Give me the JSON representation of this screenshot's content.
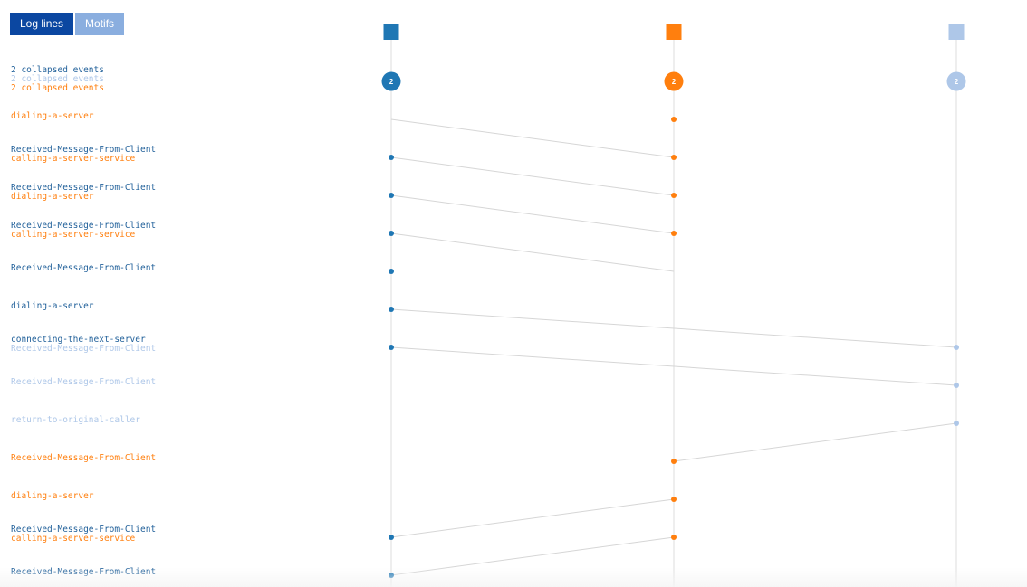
{
  "tabs": [
    {
      "label": "Log lines",
      "active": true
    },
    {
      "label": "Motifs",
      "active": false
    }
  ],
  "hosts": [
    {
      "color": "#1f77b4",
      "collapsed_count": "2",
      "collapsed_label": "2 collapsed events"
    },
    {
      "color": "#ff7f0e",
      "collapsed_count": "2",
      "collapsed_label": "2 collapsed events"
    },
    {
      "color": "#aec7e8",
      "collapsed_count": "2",
      "collapsed_label": "2 collapsed events"
    }
  ],
  "collapsed_label_order": [
    0,
    2,
    1
  ],
  "rows": [
    {
      "events": [
        {
          "host": 1,
          "text": "dialing-a-server"
        }
      ]
    },
    {
      "events": [
        {
          "host": 0,
          "text": "Received-Message-From-Client"
        },
        {
          "host": 1,
          "text": "calling-a-server-service"
        }
      ]
    },
    {
      "events": [
        {
          "host": 0,
          "text": "Received-Message-From-Client"
        },
        {
          "host": 1,
          "text": "dialing-a-server"
        }
      ]
    },
    {
      "events": [
        {
          "host": 0,
          "text": "Received-Message-From-Client"
        },
        {
          "host": 1,
          "text": "calling-a-server-service"
        }
      ]
    },
    {
      "events": [
        {
          "host": 0,
          "text": "Received-Message-From-Client"
        }
      ]
    },
    {
      "events": [
        {
          "host": 0,
          "text": "dialing-a-server"
        }
      ]
    },
    {
      "events": [
        {
          "host": 0,
          "text": "connecting-the-next-server"
        },
        {
          "host": 2,
          "text": "Received-Message-From-Client"
        }
      ]
    },
    {
      "events": [
        {
          "host": 2,
          "text": "Received-Message-From-Client"
        }
      ]
    },
    {
      "events": [
        {
          "host": 2,
          "text": "return-to-original-caller"
        }
      ]
    },
    {
      "events": [
        {
          "host": 1,
          "text": "Received-Message-From-Client"
        }
      ]
    },
    {
      "events": [
        {
          "host": 1,
          "text": "dialing-a-server"
        }
      ]
    },
    {
      "events": [
        {
          "host": 0,
          "text": "Received-Message-From-Client"
        },
        {
          "host": 1,
          "text": "calling-a-server-service"
        }
      ]
    },
    {
      "events": [
        {
          "host": 0,
          "text": "Received-Message-From-Client"
        }
      ]
    }
  ],
  "messages": [
    {
      "from": [
        1,
        1
      ],
      "to": [
        0,
        0
      ]
    },
    {
      "from": [
        1,
        2
      ],
      "to": [
        0,
        1
      ]
    },
    {
      "from": [
        1,
        3
      ],
      "to": [
        0,
        2
      ]
    },
    {
      "from": [
        1,
        4
      ],
      "to": [
        0,
        3
      ]
    },
    {
      "from": [
        0,
        5
      ],
      "to": [
        2,
        6
      ]
    },
    {
      "from": [
        0,
        6
      ],
      "to": [
        2,
        7
      ]
    },
    {
      "from": [
        2,
        8
      ],
      "to": [
        1,
        9
      ]
    },
    {
      "from": [
        1,
        10
      ],
      "to": [
        0,
        11
      ]
    },
    {
      "from": [
        1,
        11
      ],
      "to": [
        0,
        12
      ]
    }
  ]
}
